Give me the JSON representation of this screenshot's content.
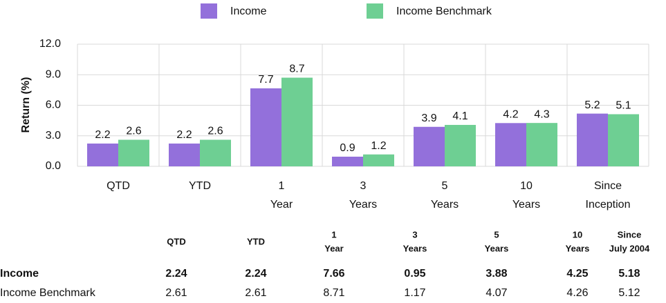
{
  "chart_data": {
    "type": "bar",
    "categories": [
      [
        "QTD"
      ],
      [
        "YTD"
      ],
      [
        "1",
        "Year"
      ],
      [
        "3",
        "Years"
      ],
      [
        "5",
        "Years"
      ],
      [
        "10",
        "Years"
      ],
      [
        "Since",
        "Inception"
      ]
    ],
    "series": [
      {
        "name": "Income",
        "color": "#9370db",
        "values": [
          2.24,
          2.24,
          7.66,
          0.95,
          3.88,
          4.25,
          5.18
        ],
        "value_labels": [
          "2.2",
          "2.2",
          "7.7",
          "0.9",
          "3.9",
          "4.2",
          "5.2"
        ]
      },
      {
        "name": "Income Benchmark",
        "color": "#6ecf93",
        "values": [
          2.61,
          2.61,
          8.71,
          1.17,
          4.07,
          4.26,
          5.12
        ],
        "value_labels": [
          "2.6",
          "2.6",
          "8.7",
          "1.2",
          "4.1",
          "4.3",
          "5.1"
        ]
      }
    ],
    "y_label": "Return (%)",
    "ylim": [
      0,
      12
    ],
    "yticks": [
      {
        "value": 0,
        "label": "0.0"
      },
      {
        "value": 3,
        "label": "3.0"
      },
      {
        "value": 6,
        "label": "6.0"
      },
      {
        "value": 9,
        "label": "9.0"
      },
      {
        "value": 12,
        "label": "12.0"
      }
    ],
    "grid": true,
    "legend": "top"
  },
  "table": {
    "columns": [
      [
        "QTD"
      ],
      [
        "YTD"
      ],
      [
        "1",
        "Year"
      ],
      [
        "3",
        "Years"
      ],
      [
        "5",
        "Years"
      ],
      [
        "10",
        "Years"
      ],
      [
        "Since",
        "July 2004"
      ]
    ],
    "rows": [
      {
        "name": "Income",
        "values": [
          "2.24",
          "2.24",
          "7.66",
          "0.95",
          "3.88",
          "4.25",
          "5.18"
        ]
      },
      {
        "name": "Income Benchmark",
        "values": [
          "2.61",
          "2.61",
          "8.71",
          "1.17",
          "4.07",
          "4.26",
          "5.12"
        ]
      }
    ]
  }
}
